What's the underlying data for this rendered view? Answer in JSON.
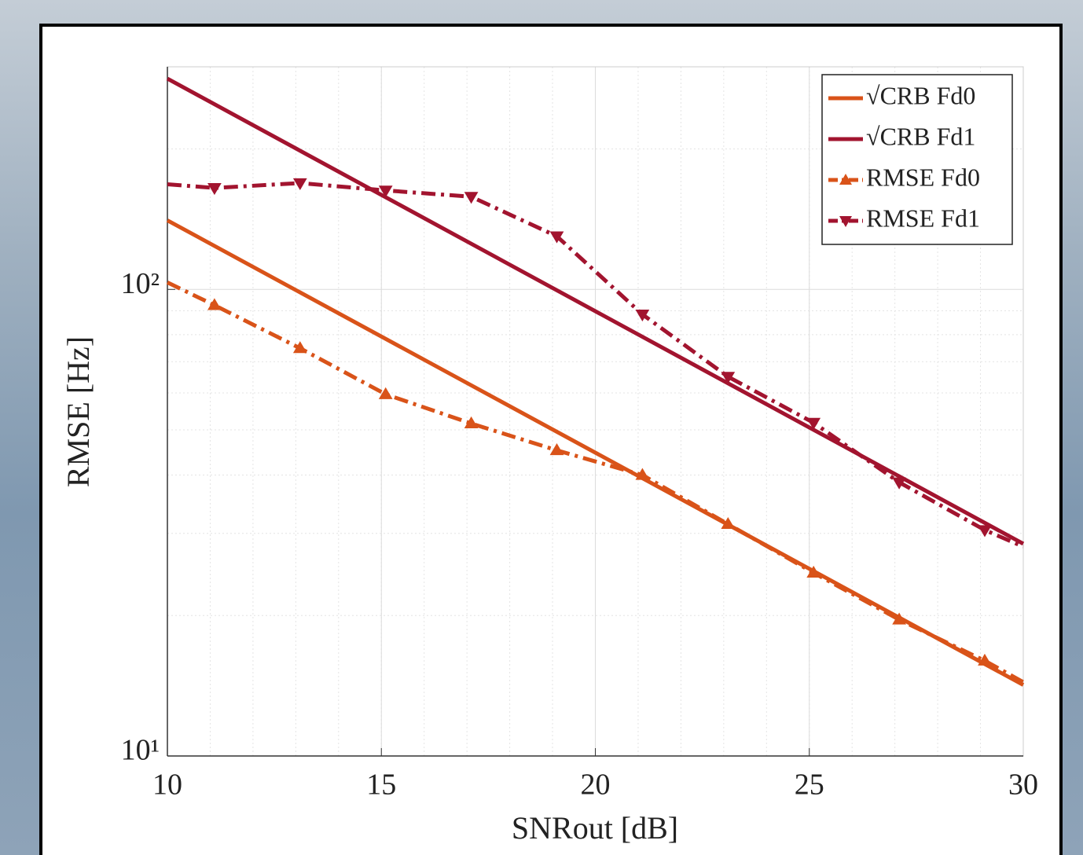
{
  "chart_data": {
    "type": "line",
    "xlabel": "SNRout [dB]",
    "ylabel": "RMSE [Hz]",
    "xlim": [
      10,
      30
    ],
    "xticks": [
      10,
      15,
      20,
      25,
      30
    ],
    "ylim": [
      10,
      300
    ],
    "yticks": [
      {
        "value": 10,
        "label": "10¹"
      },
      {
        "value": 100,
        "label": "10²"
      }
    ],
    "log_y": true,
    "grid": true,
    "legend": "upper right",
    "series": [
      {
        "name": "√CRB Fd0",
        "color": "#d95319",
        "style": "solid",
        "marker": "none",
        "x": [
          10,
          30
        ],
        "values": [
          140.6,
          14.2
        ]
      },
      {
        "name": "√CRB Fd1",
        "color": "#a2142f",
        "style": "solid",
        "marker": "none",
        "x": [
          10,
          30
        ],
        "values": [
          283,
          28.5
        ]
      },
      {
        "name": "RMSE Fd0",
        "color": "#d95319",
        "style": "dashdot",
        "marker": "triangle-up",
        "x": [
          10,
          11.1,
          13.1,
          15.1,
          17.1,
          19.1,
          21.1,
          23.1,
          25.1,
          27.1,
          29.1,
          30
        ],
        "values": [
          103.5,
          92.5,
          74.8,
          59.6,
          51.6,
          45.2,
          40.0,
          31.4,
          24.7,
          19.6,
          16.0,
          14.4
        ]
      },
      {
        "name": "RMSE Fd1",
        "color": "#a2142f",
        "style": "dashdot",
        "marker": "triangle-down",
        "x": [
          10,
          11.1,
          13.1,
          15.1,
          17.1,
          19.1,
          21.1,
          23.1,
          25.1,
          27.1,
          29.1,
          30
        ],
        "values": [
          168,
          165,
          169,
          163,
          158,
          130,
          88.4,
          65.0,
          51.8,
          38.6,
          30.5,
          28.1
        ]
      }
    ]
  }
}
